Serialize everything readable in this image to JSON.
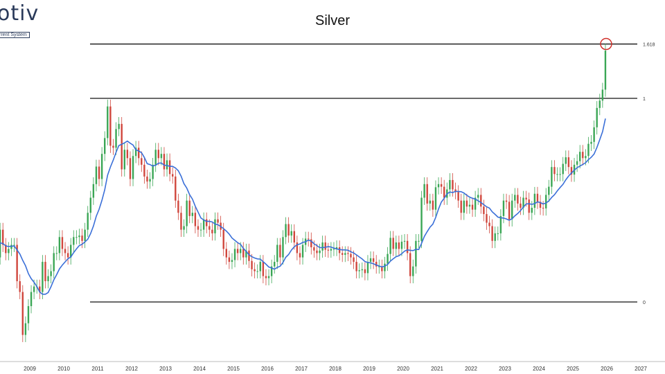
{
  "logo": {
    "word": "otiv",
    "tagline": "rrent System"
  },
  "chart_data": {
    "type": "candlestick",
    "title": "Silver",
    "y_scale": "log",
    "frequency": "monthly",
    "x_ticks": [
      "8",
      "2009",
      "2010",
      "2011",
      "2012",
      "2013",
      "2014",
      "2015",
      "2016",
      "2017",
      "2018",
      "2019",
      "2020",
      "2021",
      "2022",
      "2023",
      "2024",
      "2025",
      "2026",
      "2027"
    ],
    "closes_by_year": {
      "2008": [
        16,
        19.5,
        17.5,
        16.5,
        17,
        17.5,
        17.5,
        13.5,
        12.5,
        9.2,
        10,
        11.3
      ],
      "2009": [
        12.5,
        13,
        13,
        12.5,
        15.5,
        13.5,
        14,
        14.5,
        16.5,
        16.5,
        18.5,
        17
      ],
      "2010": [
        16.5,
        16,
        17.5,
        18.5,
        18.5,
        18.7,
        18,
        19.5,
        22,
        24.5,
        27,
        30.6
      ],
      "2011": [
        28,
        33.5,
        37.5,
        47,
        35.5,
        35,
        40,
        41.5,
        30,
        34.5,
        32.5,
        28
      ],
      "2012": [
        33,
        35,
        32.5,
        31,
        28.5,
        27.5,
        28,
        31,
        34.5,
        32.5,
        33.5,
        30
      ],
      "2013": [
        32,
        29,
        28.5,
        24,
        22,
        19.5,
        20,
        24,
        21.5,
        22,
        20,
        19.5
      ],
      "2014": [
        19.5,
        21,
        20,
        19.5,
        19,
        21,
        20.5,
        19.5,
        17,
        16,
        15.5,
        15.7
      ],
      "2015": [
        17,
        16.5,
        17,
        16,
        16.8,
        15.6,
        14.7,
        14.5,
        14.5,
        15.5,
        14,
        13.8
      ],
      "2016": [
        14,
        15,
        15.5,
        17.5,
        16,
        18.5,
        20.3,
        18.7,
        19.3,
        17.8,
        16.5,
        16
      ],
      "2017": [
        17.5,
        18.3,
        18.2,
        17.2,
        16.8,
        16.5,
        16.8,
        17.8,
        16.9,
        16.8,
        17,
        17
      ],
      "2018": [
        17.2,
        16.5,
        16.3,
        16.5,
        16.4,
        16,
        15.5,
        14.5,
        14.6,
        14.7,
        14.3,
        15.5
      ],
      "2019": [
        15.9,
        15.5,
        15,
        15,
        14.5,
        15.3,
        16.4,
        18.4,
        17,
        17.8,
        17,
        17.9
      ],
      "2020": [
        18,
        16.5,
        14,
        15,
        18,
        18,
        24.5,
        27,
        23.5,
        24,
        22.5,
        26.4
      ],
      "2021": [
        27,
        26.5,
        24.5,
        26,
        27.8,
        26,
        25.5,
        24,
        22,
        24,
        23,
        23.3
      ],
      "2022": [
        22.5,
        24.5,
        25,
        23,
        21.8,
        20.5,
        20,
        18,
        19,
        19,
        21.5,
        24
      ],
      "2023": [
        23.8,
        21,
        24,
        25,
        23.5,
        22.8,
        24.5,
        24.2,
        22,
        22.8,
        25.2,
        23.8
      ],
      "2024": [
        22.8,
        22.7,
        25,
        26.5,
        30.5,
        29,
        29,
        29,
        31.2,
        32.7,
        30.5,
        28.9
      ],
      "2025": [
        31,
        31.8,
        34,
        32.5,
        33,
        36,
        36.5,
        40.5,
        46.5,
        49,
        53,
        70
      ]
    },
    "moving_average": {
      "color": "#3a6fd8"
    },
    "candle_colors": {
      "up": "#3aa655",
      "down": "#d0463c"
    },
    "fib_levels": [
      {
        "label": "0",
        "price": 11.64
      },
      {
        "label": "1",
        "price": 49.8
      },
      {
        "label": "1.618",
        "price": 73.4
      }
    ],
    "annotation": {
      "type": "circle",
      "color": "#d0302a",
      "at_level": "1.618"
    }
  }
}
